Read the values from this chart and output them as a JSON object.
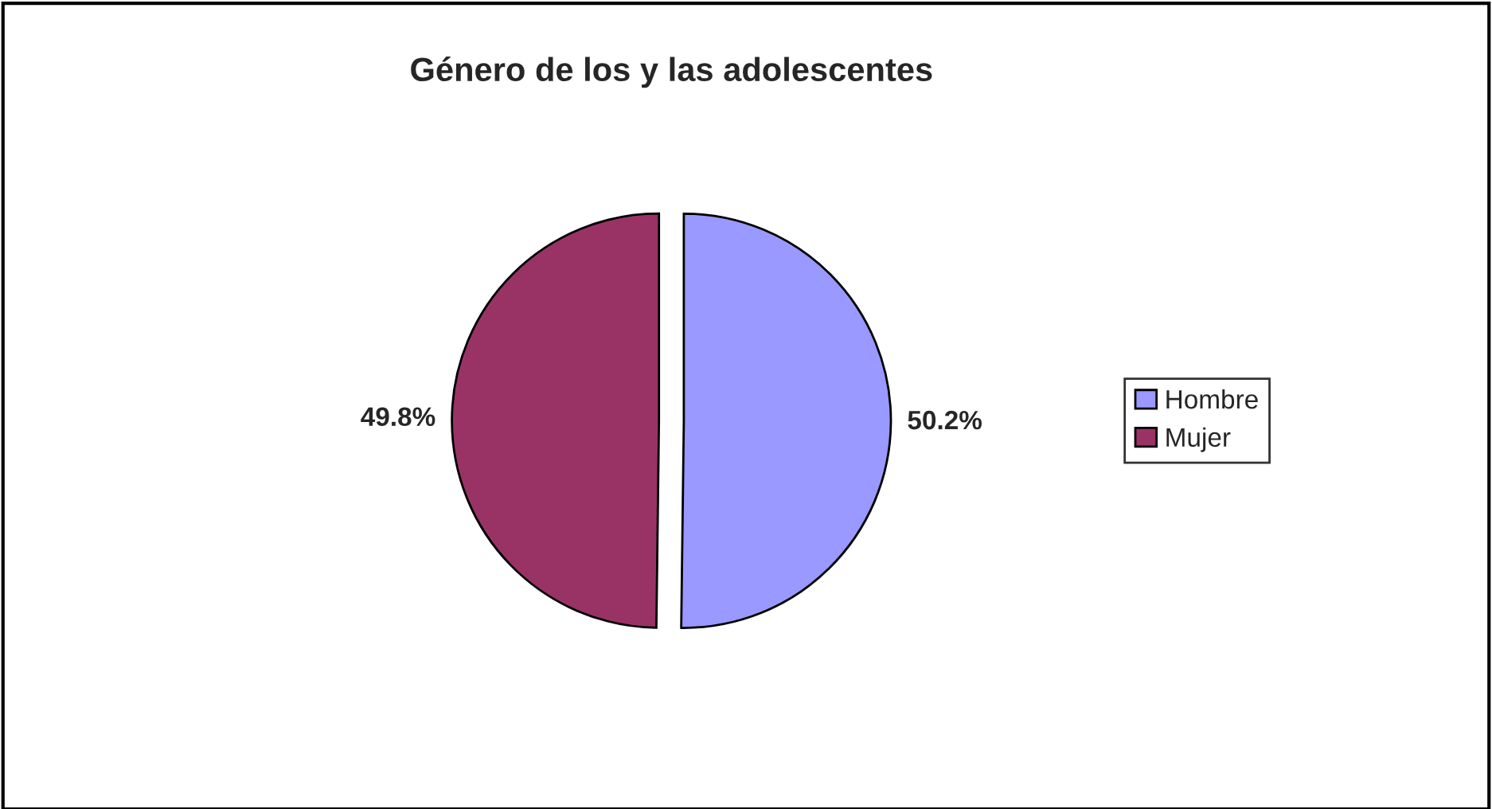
{
  "chart_data": {
    "type": "pie",
    "title": "Género de los y las adolescentes",
    "categories": [
      "Hombre",
      "Mujer"
    ],
    "values": [
      50.2,
      49.8
    ],
    "colors": [
      "#9999ff",
      "#993366"
    ],
    "value_labels": [
      "50.2%",
      "49.8%"
    ],
    "legend": "right"
  }
}
